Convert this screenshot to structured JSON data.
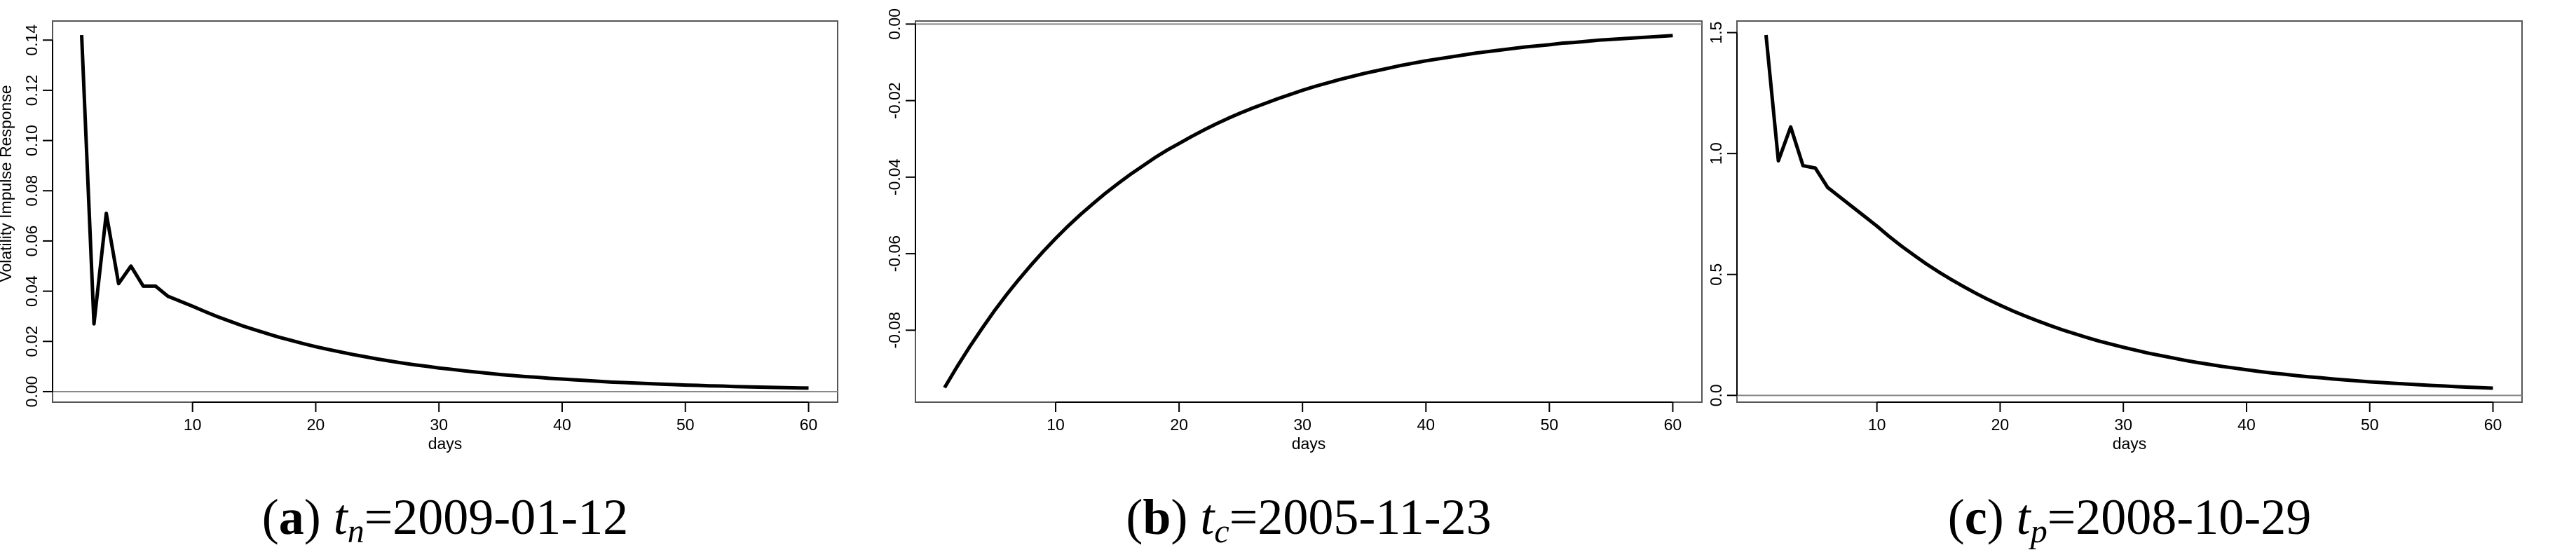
{
  "chart_data": [
    {
      "type": "line",
      "y_label": "Volatility Impulse Response",
      "x_label": "days",
      "caption": {
        "open": "(",
        "label": "a",
        "close": ")",
        "var": "t",
        "sub": "n",
        "rest": "=2009-01-12"
      },
      "x": [
        1,
        2,
        3,
        4,
        5,
        6,
        7,
        8,
        9,
        10,
        11,
        12,
        13,
        14,
        15,
        16,
        17,
        18,
        19,
        20,
        21,
        22,
        23,
        24,
        25,
        26,
        27,
        28,
        29,
        30,
        31,
        32,
        33,
        34,
        35,
        36,
        37,
        38,
        39,
        40,
        41,
        42,
        43,
        44,
        45,
        46,
        47,
        48,
        49,
        50,
        51,
        52,
        53,
        54,
        55,
        56,
        57,
        58,
        59,
        60
      ],
      "series": [
        {
          "color": "#000000",
          "values": [
            0.142,
            0.027,
            0.071,
            0.043,
            0.05,
            0.042,
            0.042,
            0.038,
            0.036,
            0.034,
            0.0319,
            0.0299,
            0.0281,
            0.0263,
            0.0247,
            0.0232,
            0.0217,
            0.0204,
            0.0191,
            0.0179,
            0.0168,
            0.0158,
            0.0148,
            0.0139,
            0.013,
            0.0122,
            0.0114,
            0.0107,
            0.0101,
            0.0094,
            0.0089,
            0.0083,
            0.0078,
            0.0073,
            0.0068,
            0.0064,
            0.006,
            0.0057,
            0.0053,
            0.005,
            0.0047,
            0.0044,
            0.0041,
            0.0038,
            0.0036,
            0.0034,
            0.0032,
            0.003,
            0.0028,
            0.0026,
            0.0025,
            0.0023,
            0.0022,
            0.002,
            0.0019,
            0.0018,
            0.0017,
            0.0016,
            0.0015,
            0.0014
          ]
        }
      ],
      "xlim": [
        -1.36,
        62.36
      ],
      "xticks": [
        10,
        20,
        30,
        40,
        50,
        60
      ],
      "ylim": [
        -0.0042,
        0.1476
      ],
      "yticks": [
        {
          "value": 0,
          "label": "0.00"
        },
        {
          "value": 0.02,
          "label": "0.02"
        },
        {
          "value": 0.04,
          "label": "0.04"
        },
        {
          "value": 0.06,
          "label": "0.06"
        },
        {
          "value": 0.08,
          "label": "0.08"
        },
        {
          "value": 0.1,
          "label": "0.10"
        },
        {
          "value": 0.12,
          "label": "0.12"
        },
        {
          "value": 0.14,
          "label": "0.14"
        }
      ],
      "hline": 0
    },
    {
      "type": "line",
      "x_label": "days",
      "caption": {
        "open": "(",
        "label": "b",
        "close": ")",
        "var": "t",
        "sub": "c",
        "rest": "=2005-11-23"
      },
      "x": [
        1,
        2,
        3,
        4,
        5,
        6,
        7,
        8,
        9,
        10,
        11,
        12,
        13,
        14,
        15,
        16,
        17,
        18,
        19,
        20,
        21,
        22,
        23,
        24,
        25,
        26,
        27,
        28,
        29,
        30,
        31,
        32,
        33,
        34,
        35,
        36,
        37,
        38,
        39,
        40,
        41,
        42,
        43,
        44,
        45,
        46,
        47,
        48,
        49,
        50,
        51,
        52,
        53,
        54,
        55,
        56,
        57,
        58,
        59,
        60
      ],
      "series": [
        {
          "color": "#000000",
          "values": [
            -0.095,
            -0.0896,
            -0.0845,
            -0.0797,
            -0.0751,
            -0.0708,
            -0.0668,
            -0.063,
            -0.0594,
            -0.056,
            -0.0528,
            -0.0498,
            -0.047,
            -0.0443,
            -0.0418,
            -0.0394,
            -0.0372,
            -0.035,
            -0.033,
            -0.0312,
            -0.0294,
            -0.0277,
            -0.0261,
            -0.0246,
            -0.0232,
            -0.0219,
            -0.0207,
            -0.0195,
            -0.0184,
            -0.0173,
            -0.0163,
            -0.0154,
            -0.0145,
            -0.0137,
            -0.0129,
            -0.0122,
            -0.0115,
            -0.0108,
            -0.0102,
            -0.0096,
            -0.0091,
            -0.0086,
            -0.0081,
            -0.0076,
            -0.0072,
            -0.0068,
            -0.0064,
            -0.006,
            -0.0057,
            -0.0054,
            -0.005,
            -0.0048,
            -0.0045,
            -0.0042,
            -0.004,
            -0.0038,
            -0.0036,
            -0.0034,
            -0.0032,
            -0.003
          ]
        }
      ],
      "xlim": [
        -1.36,
        62.36
      ],
      "xticks": [
        10,
        20,
        30,
        40,
        50,
        60
      ],
      "ylim": [
        -0.0988,
        0.0008
      ],
      "yticks": [
        {
          "value": -0.08,
          "label": "-0.08"
        },
        {
          "value": -0.06,
          "label": "-0.06"
        },
        {
          "value": -0.04,
          "label": "-0.04"
        },
        {
          "value": -0.02,
          "label": "-0.02"
        },
        {
          "value": 0,
          "label": "0.00"
        }
      ],
      "hline": 0
    },
    {
      "type": "line",
      "x_label": "days",
      "caption": {
        "open": "(",
        "label": "c",
        "close": ")",
        "var": "t",
        "sub": "p",
        "rest": "=2008-10-29"
      },
      "x": [
        1,
        2,
        3,
        4,
        5,
        6,
        7,
        8,
        9,
        10,
        11,
        12,
        13,
        14,
        15,
        16,
        17,
        18,
        19,
        20,
        21,
        22,
        23,
        24,
        25,
        26,
        27,
        28,
        29,
        30,
        31,
        32,
        33,
        34,
        35,
        36,
        37,
        38,
        39,
        40,
        41,
        42,
        43,
        44,
        45,
        46,
        47,
        48,
        49,
        50,
        51,
        52,
        53,
        54,
        55,
        56,
        57,
        58,
        59,
        60
      ],
      "series": [
        {
          "color": "#000000",
          "values": [
            1.49,
            0.97,
            1.11,
            0.95,
            0.94,
            0.86,
            0.82,
            0.78,
            0.74,
            0.7,
            0.657,
            0.617,
            0.58,
            0.544,
            0.511,
            0.48,
            0.451,
            0.423,
            0.397,
            0.373,
            0.35,
            0.329,
            0.309,
            0.29,
            0.272,
            0.256,
            0.24,
            0.225,
            0.212,
            0.199,
            0.187,
            0.175,
            0.165,
            0.155,
            0.145,
            0.136,
            0.128,
            0.12,
            0.113,
            0.106,
            0.099,
            0.093,
            0.088,
            0.082,
            0.077,
            0.073,
            0.068,
            0.064,
            0.06,
            0.056,
            0.053,
            0.05,
            0.047,
            0.044,
            0.041,
            0.039,
            0.036,
            0.034,
            0.032,
            0.03
          ]
        }
      ],
      "xlim": [
        -1.36,
        62.36
      ],
      "xticks": [
        10,
        20,
        30,
        40,
        50,
        60
      ],
      "ylim": [
        -0.028,
        1.548
      ],
      "yticks": [
        {
          "value": 0,
          "label": "0.0"
        },
        {
          "value": 0.5,
          "label": "0.5"
        },
        {
          "value": 1,
          "label": "1.0"
        },
        {
          "value": 1.5,
          "label": "1.5"
        }
      ],
      "hline": 0
    }
  ]
}
